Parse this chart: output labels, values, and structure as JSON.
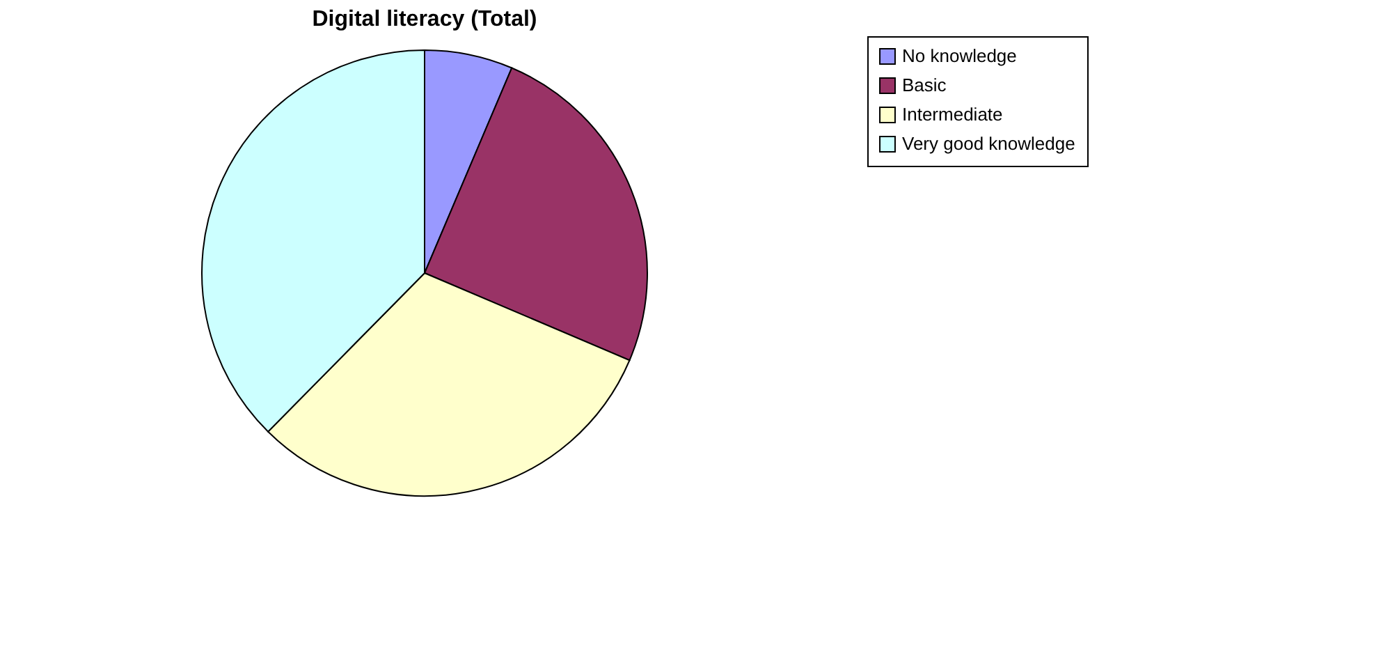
{
  "chart_data": {
    "type": "pie",
    "title": "Digital literacy (Total)",
    "categories": [
      "No knowledge",
      "Basic",
      "Intermediate",
      "Very good knowledge"
    ],
    "values": [
      6.4,
      25,
      31,
      37.6
    ],
    "colors": [
      "#9999ff",
      "#993366",
      "#ffffcc",
      "#ccffff"
    ],
    "legend": "right"
  }
}
